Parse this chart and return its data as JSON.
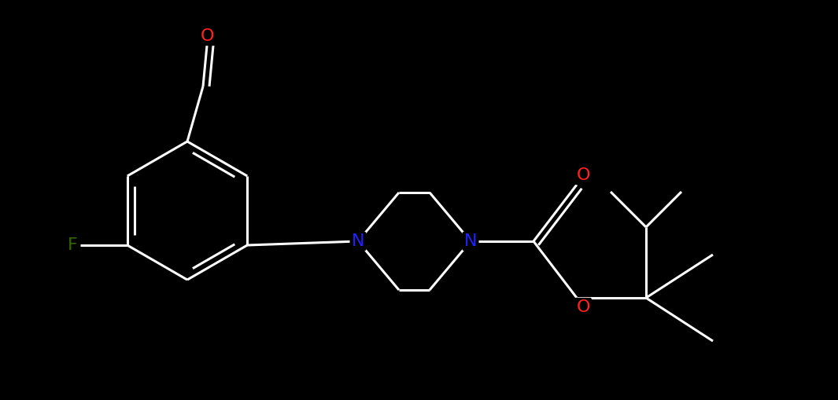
{
  "background_color": "#000000",
  "bond_color": "#ffffff",
  "atom_colors": {
    "N": "#2222ff",
    "O": "#ff2222",
    "F": "#336600",
    "C": "#ffffff"
  },
  "figsize": [
    10.65,
    5.09
  ],
  "dpi": 100,
  "lw": 2.2,
  "fontsize": 16
}
